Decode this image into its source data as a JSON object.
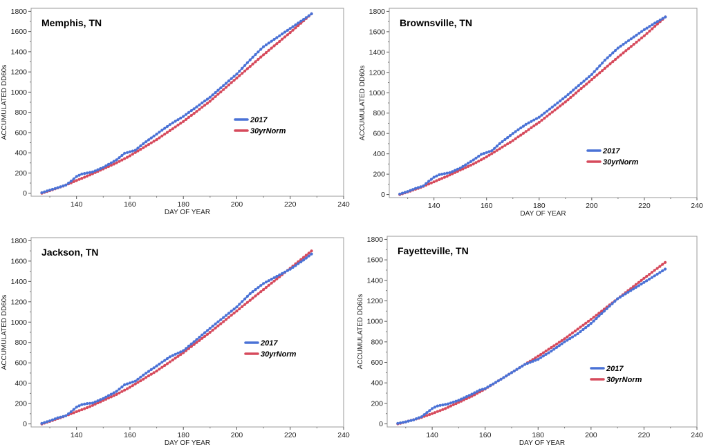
{
  "colors": {
    "series_2017": "#4a72d6",
    "series_norm": "#d64a5c",
    "frame": "#9a9a9a"
  },
  "chart_data": [
    {
      "type": "line",
      "title": "Memphis, TN",
      "xlabel": "DAY OF YEAR",
      "ylabel": "ACCUMULATED DD60s",
      "xlim": [
        123,
        240
      ],
      "ylim": [
        -30,
        1830
      ],
      "xticks": [
        140,
        160,
        180,
        200,
        220,
        240
      ],
      "yticks": [
        0,
        200,
        400,
        600,
        800,
        1000,
        1200,
        1400,
        1600,
        1800
      ],
      "legend": "right-middle",
      "grid": false,
      "x_start": 127,
      "x_end": 228,
      "series": [
        {
          "name": "2017",
          "color": "#4a72d6",
          "points": [
            [
              127,
              5
            ],
            [
              130,
              30
            ],
            [
              133,
              55
            ],
            [
              136,
              80
            ],
            [
              138,
              120
            ],
            [
              140,
              165
            ],
            [
              142,
              190
            ],
            [
              144,
              200
            ],
            [
              146,
              210
            ],
            [
              150,
              255
            ],
            [
              155,
              330
            ],
            [
              158,
              395
            ],
            [
              162,
              425
            ],
            [
              165,
              490
            ],
            [
              170,
              585
            ],
            [
              175,
              680
            ],
            [
              180,
              760
            ],
            [
              190,
              950
            ],
            [
              200,
              1180
            ],
            [
              205,
              1320
            ],
            [
              210,
              1450
            ],
            [
              215,
              1540
            ],
            [
              220,
              1630
            ],
            [
              225,
              1720
            ],
            [
              228,
              1775
            ]
          ]
        },
        {
          "name": "30yrNorm",
          "color": "#d64a5c",
          "points": [
            [
              127,
              0
            ],
            [
              130,
              25
            ],
            [
              135,
              70
            ],
            [
              140,
              125
            ],
            [
              145,
              180
            ],
            [
              150,
              240
            ],
            [
              155,
              300
            ],
            [
              160,
              370
            ],
            [
              165,
              450
            ],
            [
              170,
              530
            ],
            [
              175,
              620
            ],
            [
              180,
              710
            ],
            [
              190,
              910
            ],
            [
              200,
              1140
            ],
            [
              210,
              1370
            ],
            [
              220,
              1590
            ],
            [
              228,
              1775
            ]
          ]
        }
      ]
    },
    {
      "type": "line",
      "title": "Brownsville, TN",
      "xlabel": "DAY OF YEAR",
      "ylabel": "ACCUMULATED DD60s",
      "xlim": [
        123,
        240
      ],
      "ylim": [
        -30,
        1830
      ],
      "xticks": [
        140,
        160,
        180,
        200,
        220,
        240
      ],
      "yticks": [
        0,
        200,
        400,
        600,
        800,
        1000,
        1200,
        1400,
        1600,
        1800
      ],
      "legend": "right-middle",
      "grid": false,
      "x_start": 127,
      "x_end": 228,
      "series": [
        {
          "name": "2017",
          "color": "#4a72d6",
          "points": [
            [
              127,
              5
            ],
            [
              130,
              30
            ],
            [
              133,
              60
            ],
            [
              136,
              85
            ],
            [
              138,
              130
            ],
            [
              140,
              170
            ],
            [
              142,
              195
            ],
            [
              144,
              205
            ],
            [
              146,
              215
            ],
            [
              150,
              260
            ],
            [
              155,
              340
            ],
            [
              158,
              395
            ],
            [
              162,
              430
            ],
            [
              165,
              500
            ],
            [
              170,
              600
            ],
            [
              175,
              690
            ],
            [
              180,
              760
            ],
            [
              190,
              960
            ],
            [
              200,
              1180
            ],
            [
              205,
              1320
            ],
            [
              210,
              1440
            ],
            [
              215,
              1530
            ],
            [
              220,
              1620
            ],
            [
              225,
              1700
            ],
            [
              228,
              1745
            ]
          ]
        },
        {
          "name": "30yrNorm",
          "color": "#d64a5c",
          "points": [
            [
              127,
              0
            ],
            [
              130,
              25
            ],
            [
              135,
              70
            ],
            [
              140,
              125
            ],
            [
              145,
              180
            ],
            [
              150,
              240
            ],
            [
              155,
              300
            ],
            [
              160,
              370
            ],
            [
              165,
              450
            ],
            [
              170,
              530
            ],
            [
              175,
              620
            ],
            [
              180,
              710
            ],
            [
              190,
              910
            ],
            [
              200,
              1130
            ],
            [
              210,
              1350
            ],
            [
              220,
              1560
            ],
            [
              228,
              1745
            ]
          ]
        }
      ]
    },
    {
      "type": "line",
      "title": "Jackson, TN",
      "xlabel": "DAY OF YEAR",
      "ylabel": "ACCUMULATED DD60s",
      "xlim": [
        123,
        240
      ],
      "ylim": [
        -30,
        1830
      ],
      "xticks": [
        140,
        160,
        180,
        200,
        220,
        240
      ],
      "yticks": [
        0,
        200,
        400,
        600,
        800,
        1000,
        1200,
        1400,
        1600,
        1800
      ],
      "legend": "right-middle",
      "grid": false,
      "x_start": 127,
      "x_end": 228,
      "series": [
        {
          "name": "2017",
          "color": "#4a72d6",
          "points": [
            [
              127,
              5
            ],
            [
              130,
              30
            ],
            [
              133,
              60
            ],
            [
              136,
              80
            ],
            [
              138,
              120
            ],
            [
              140,
              165
            ],
            [
              142,
              190
            ],
            [
              144,
              200
            ],
            [
              146,
              205
            ],
            [
              150,
              250
            ],
            [
              155,
              320
            ],
            [
              158,
              385
            ],
            [
              162,
              420
            ],
            [
              165,
              480
            ],
            [
              170,
              570
            ],
            [
              175,
              660
            ],
            [
              180,
              720
            ],
            [
              190,
              940
            ],
            [
              200,
              1150
            ],
            [
              205,
              1280
            ],
            [
              210,
              1380
            ],
            [
              215,
              1450
            ],
            [
              220,
              1520
            ],
            [
              225,
              1610
            ],
            [
              228,
              1670
            ]
          ]
        },
        {
          "name": "30yrNorm",
          "color": "#d64a5c",
          "points": [
            [
              127,
              0
            ],
            [
              130,
              25
            ],
            [
              135,
              70
            ],
            [
              140,
              120
            ],
            [
              145,
              170
            ],
            [
              150,
              230
            ],
            [
              155,
              290
            ],
            [
              160,
              360
            ],
            [
              165,
              440
            ],
            [
              170,
              520
            ],
            [
              175,
              610
            ],
            [
              180,
              700
            ],
            [
              190,
              900
            ],
            [
              200,
              1110
            ],
            [
              210,
              1320
            ],
            [
              220,
              1530
            ],
            [
              228,
              1700
            ]
          ]
        }
      ]
    },
    {
      "type": "line",
      "title": "Fayetteville, TN",
      "xlabel": "DAY OF YEAR",
      "ylabel": "ACCUMULATED DD60s",
      "xlim": [
        123,
        240
      ],
      "ylim": [
        -30,
        1830
      ],
      "xticks": [
        140,
        160,
        180,
        200,
        220,
        240
      ],
      "yticks": [
        0,
        200,
        400,
        600,
        800,
        1000,
        1200,
        1400,
        1600,
        1800
      ],
      "legend": "right-middle",
      "grid": false,
      "x_start": 127,
      "x_end": 228,
      "series": [
        {
          "name": "2017",
          "color": "#4a72d6",
          "points": [
            [
              127,
              5
            ],
            [
              130,
              20
            ],
            [
              133,
              40
            ],
            [
              136,
              70
            ],
            [
              138,
              110
            ],
            [
              140,
              150
            ],
            [
              142,
              175
            ],
            [
              144,
              185
            ],
            [
              146,
              195
            ],
            [
              150,
              230
            ],
            [
              155,
              290
            ],
            [
              158,
              330
            ],
            [
              160,
              345
            ],
            [
              165,
              420
            ],
            [
              170,
              500
            ],
            [
              175,
              580
            ],
            [
              180,
              630
            ],
            [
              185,
              710
            ],
            [
              190,
              800
            ],
            [
              195,
              880
            ],
            [
              200,
              980
            ],
            [
              205,
              1100
            ],
            [
              210,
              1220
            ],
            [
              215,
              1300
            ],
            [
              220,
              1380
            ],
            [
              225,
              1460
            ],
            [
              228,
              1510
            ]
          ]
        },
        {
          "name": "30yrNorm",
          "color": "#d64a5c",
          "points": [
            [
              127,
              0
            ],
            [
              130,
              20
            ],
            [
              135,
              55
            ],
            [
              140,
              100
            ],
            [
              145,
              150
            ],
            [
              150,
              210
            ],
            [
              155,
              270
            ],
            [
              160,
              340
            ],
            [
              165,
              420
            ],
            [
              170,
              500
            ],
            [
              175,
              580
            ],
            [
              180,
              660
            ],
            [
              190,
              830
            ],
            [
              200,
              1020
            ],
            [
              210,
              1220
            ],
            [
              220,
              1420
            ],
            [
              228,
              1575
            ]
          ]
        }
      ]
    }
  ]
}
